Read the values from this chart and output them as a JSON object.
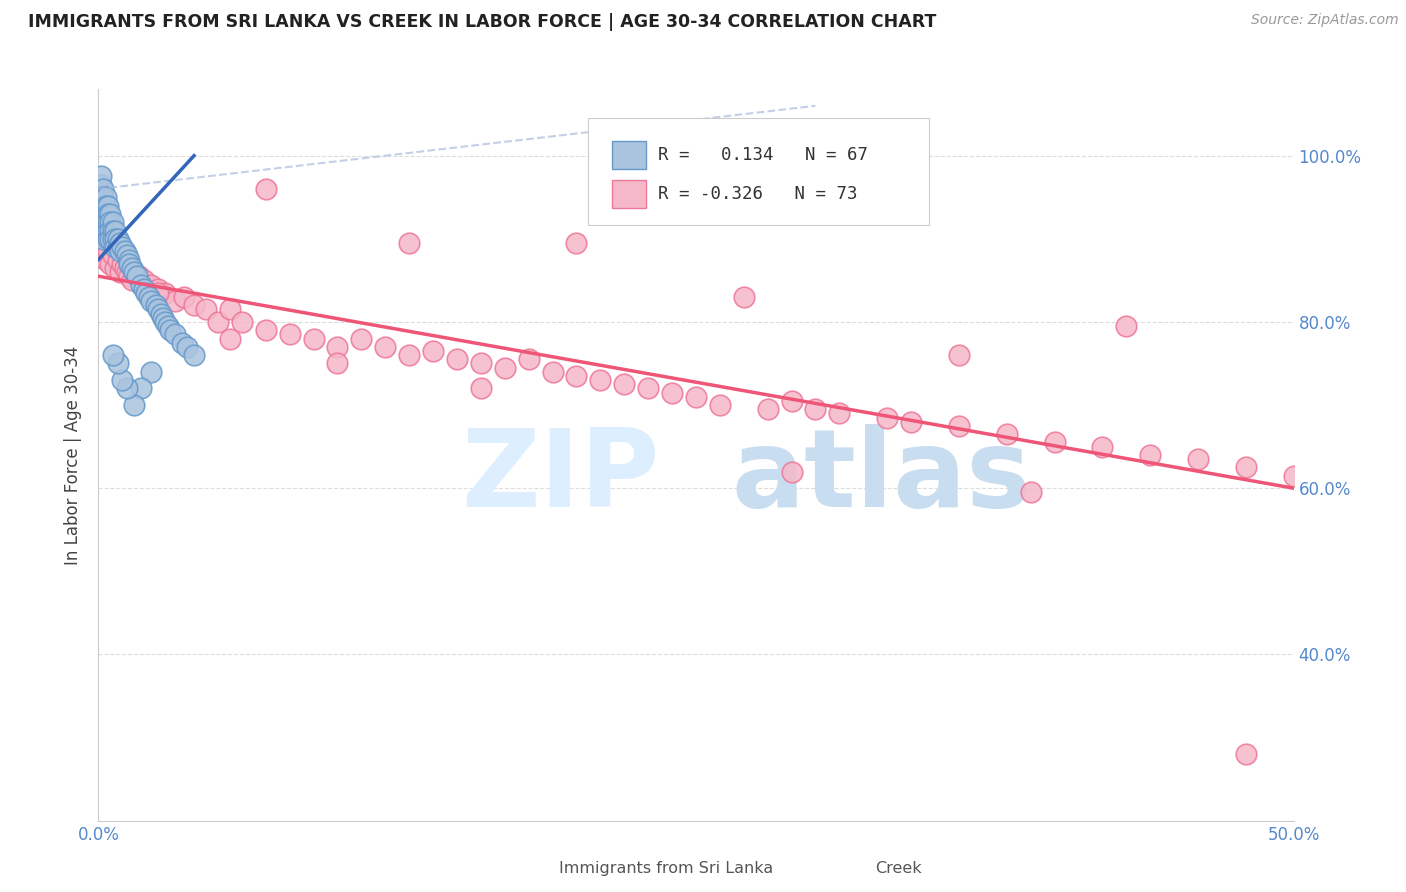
{
  "title": "IMMIGRANTS FROM SRI LANKA VS CREEK IN LABOR FORCE | AGE 30-34 CORRELATION CHART",
  "source": "Source: ZipAtlas.com",
  "ylabel": "In Labor Force | Age 30-34",
  "xlim": [
    0.0,
    0.5
  ],
  "ylim": [
    0.2,
    1.08
  ],
  "xticks": [
    0.0,
    0.1,
    0.2,
    0.3,
    0.4,
    0.5
  ],
  "xtick_labels": [
    "0.0%",
    "",
    "",
    "",
    "",
    "50.0%"
  ],
  "yticks": [
    0.4,
    0.6,
    0.8,
    1.0
  ],
  "ytick_labels": [
    "40.0%",
    "60.0%",
    "80.0%",
    "100.0%"
  ],
  "sri_lanka_color": "#aac4df",
  "creek_color": "#f5b8c8",
  "sri_lanka_edge": "#6699cc",
  "creek_edge": "#ee7799",
  "trend_blue": "#3366bb",
  "trend_pink": "#ee5577",
  "trend_blue_dash": "#aabbdd",
  "watermark_zip_color": "#ddeeff",
  "watermark_atlas_color": "#c8ddf0",
  "grid_color": "#dddddd",
  "title_color": "#222222",
  "axis_label_color": "#444444",
  "tick_color_blue": "#5588cc",
  "background_color": "#ffffff",
  "R_sri": "0.134",
  "N_sri": "67",
  "R_creek": "-0.326",
  "N_creek": "73",
  "sri_lanka_x": [
    0.001,
    0.001,
    0.001,
    0.001,
    0.001,
    0.002,
    0.002,
    0.002,
    0.002,
    0.002,
    0.002,
    0.002,
    0.003,
    0.003,
    0.003,
    0.003,
    0.003,
    0.004,
    0.004,
    0.004,
    0.004,
    0.004,
    0.005,
    0.005,
    0.005,
    0.005,
    0.006,
    0.006,
    0.006,
    0.007,
    0.007,
    0.007,
    0.008,
    0.008,
    0.009,
    0.009,
    0.01,
    0.011,
    0.012,
    0.013,
    0.013,
    0.014,
    0.015,
    0.016,
    0.018,
    0.019,
    0.02,
    0.021,
    0.022,
    0.024,
    0.025,
    0.026,
    0.027,
    0.028,
    0.029,
    0.03,
    0.032,
    0.035,
    0.037,
    0.04,
    0.022,
    0.018,
    0.015,
    0.012,
    0.01,
    0.008,
    0.006
  ],
  "sri_lanka_y": [
    0.955,
    0.965,
    0.975,
    0.95,
    0.945,
    0.96,
    0.95,
    0.94,
    0.93,
    0.92,
    0.91,
    0.9,
    0.95,
    0.94,
    0.93,
    0.92,
    0.91,
    0.94,
    0.93,
    0.92,
    0.91,
    0.9,
    0.93,
    0.92,
    0.91,
    0.9,
    0.92,
    0.91,
    0.9,
    0.91,
    0.9,
    0.89,
    0.9,
    0.89,
    0.895,
    0.885,
    0.89,
    0.885,
    0.88,
    0.875,
    0.87,
    0.865,
    0.86,
    0.855,
    0.845,
    0.84,
    0.835,
    0.83,
    0.825,
    0.82,
    0.815,
    0.81,
    0.805,
    0.8,
    0.795,
    0.79,
    0.785,
    0.775,
    0.77,
    0.76,
    0.74,
    0.72,
    0.7,
    0.72,
    0.73,
    0.75,
    0.76
  ],
  "creek_x": [
    0.002,
    0.003,
    0.004,
    0.005,
    0.006,
    0.007,
    0.008,
    0.009,
    0.01,
    0.011,
    0.012,
    0.013,
    0.014,
    0.015,
    0.017,
    0.019,
    0.022,
    0.025,
    0.028,
    0.032,
    0.036,
    0.04,
    0.045,
    0.05,
    0.055,
    0.06,
    0.07,
    0.08,
    0.09,
    0.1,
    0.11,
    0.12,
    0.13,
    0.14,
    0.15,
    0.16,
    0.17,
    0.18,
    0.19,
    0.2,
    0.21,
    0.22,
    0.23,
    0.24,
    0.25,
    0.26,
    0.28,
    0.29,
    0.3,
    0.31,
    0.33,
    0.34,
    0.36,
    0.38,
    0.4,
    0.42,
    0.44,
    0.46,
    0.48,
    0.5,
    0.07,
    0.13,
    0.2,
    0.27,
    0.36,
    0.43,
    0.025,
    0.055,
    0.1,
    0.16,
    0.29,
    0.39,
    0.48
  ],
  "creek_y": [
    0.88,
    0.875,
    0.885,
    0.87,
    0.88,
    0.865,
    0.875,
    0.86,
    0.87,
    0.865,
    0.86,
    0.855,
    0.85,
    0.86,
    0.855,
    0.85,
    0.845,
    0.84,
    0.835,
    0.825,
    0.83,
    0.82,
    0.815,
    0.8,
    0.815,
    0.8,
    0.79,
    0.785,
    0.78,
    0.77,
    0.78,
    0.77,
    0.76,
    0.765,
    0.755,
    0.75,
    0.745,
    0.755,
    0.74,
    0.735,
    0.73,
    0.725,
    0.72,
    0.715,
    0.71,
    0.7,
    0.695,
    0.705,
    0.695,
    0.69,
    0.685,
    0.68,
    0.675,
    0.665,
    0.655,
    0.65,
    0.64,
    0.635,
    0.625,
    0.615,
    0.96,
    0.895,
    0.895,
    0.83,
    0.76,
    0.795,
    0.835,
    0.78,
    0.75,
    0.72,
    0.62,
    0.595,
    0.28
  ]
}
